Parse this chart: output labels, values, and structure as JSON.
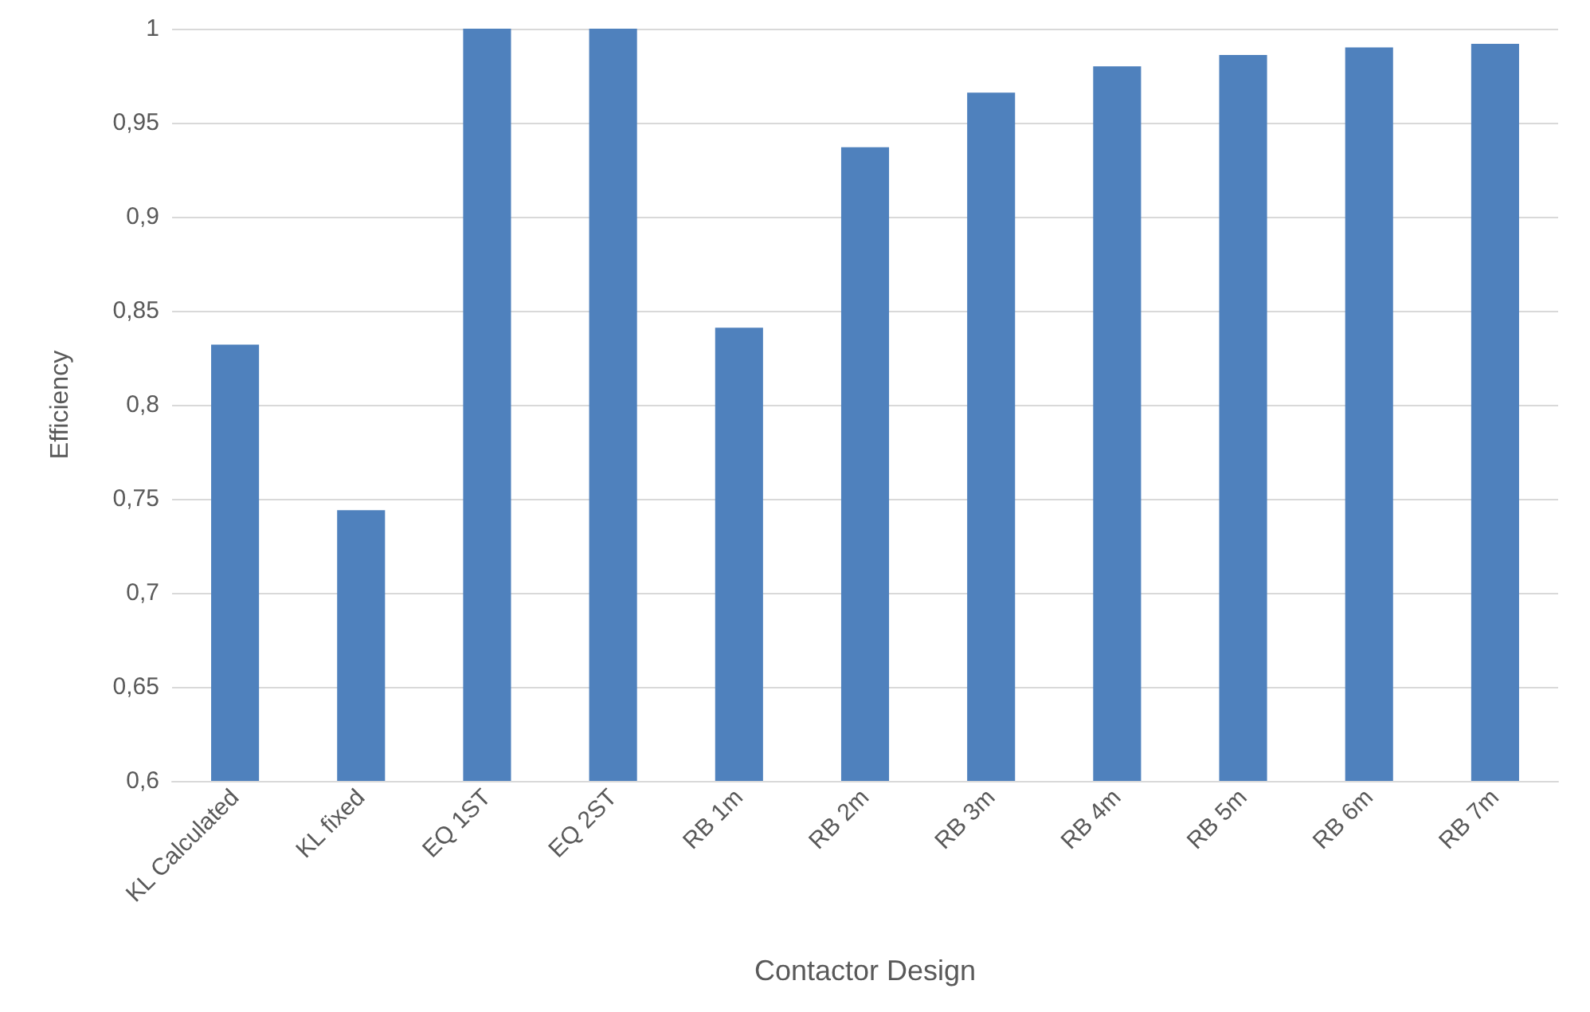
{
  "chart_data": {
    "type": "bar",
    "xlabel": "Contactor Design",
    "ylabel": "Efficiency",
    "categories": [
      "KL Calculated",
      "KL fixed",
      "EQ 1ST",
      "EQ 2ST",
      "RB 1m",
      "RB 2m",
      "RB 3m",
      "RB 4m",
      "RB 5m",
      "RB 6m",
      "RB 7m"
    ],
    "values": [
      0.832,
      0.744,
      1,
      1,
      0.841,
      0.937,
      0.966,
      0.98,
      0.986,
      0.99,
      0.992
    ],
    "color": "#4f81bd",
    "ylim": [
      0.6,
      1
    ],
    "yticks": [
      {
        "value": 0.6,
        "label": "0,6"
      },
      {
        "value": 0.65,
        "label": "0,65"
      },
      {
        "value": 0.7,
        "label": "0,7"
      },
      {
        "value": 0.75,
        "label": "0,75"
      },
      {
        "value": 0.8,
        "label": "0,8"
      },
      {
        "value": 0.85,
        "label": "0,85"
      },
      {
        "value": 0.9,
        "label": "0,9"
      },
      {
        "value": 0.95,
        "label": "0,95"
      },
      1
    ],
    "grid": "y"
  }
}
